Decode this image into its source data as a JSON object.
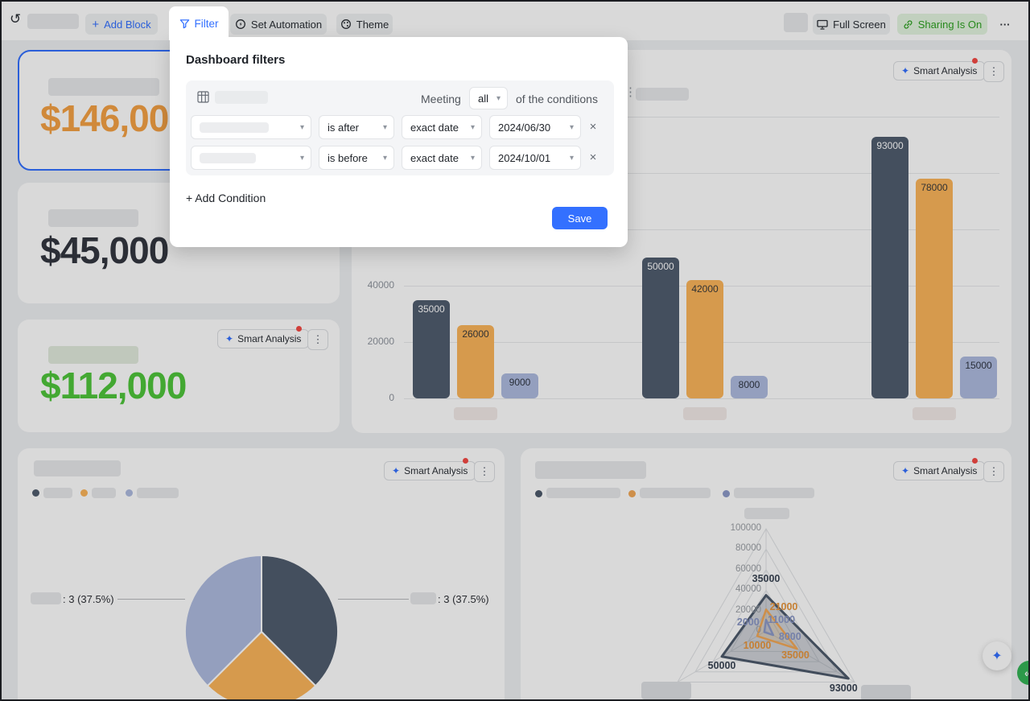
{
  "toolbar": {
    "add_block": "Add Block",
    "filter": "Filter",
    "set_automation": "Set Automation",
    "theme": "Theme",
    "full_screen": "Full Screen",
    "sharing": "Sharing Is On",
    "more": "···"
  },
  "filter_modal": {
    "title": "Dashboard filters",
    "meeting_label": "Meeting",
    "match_value": "all",
    "conditions_suffix": "of the conditions",
    "rows": [
      {
        "operator": "is after",
        "mode": "exact date",
        "value": "2024/06/30"
      },
      {
        "operator": "is before",
        "mode": "exact date",
        "value": "2024/10/01"
      }
    ],
    "add_condition": "+ Add Condition",
    "save": "Save"
  },
  "stat_cards": [
    {
      "value": "$146,000",
      "color": "#F5A245",
      "selected": true
    },
    {
      "value": "$45,000",
      "color": "#333740",
      "selected": false
    },
    {
      "value": "$112,000",
      "color": "#4FC63B",
      "selected": false
    }
  ],
  "smart_analysis_label": "Smart Analysis",
  "floating": {
    "collapse": "«",
    "spark": "✦"
  },
  "colors": {
    "accent_blue": "#3370FF",
    "sharing_green": "#2EA121",
    "red_dot": "#F54A45"
  },
  "chart_data": [
    {
      "type": "bar",
      "title": "",
      "categories": [
        "",
        "",
        ""
      ],
      "series": [
        {
          "name": "",
          "color": "#515D6F",
          "values": [
            35000,
            50000,
            93000
          ]
        },
        {
          "name": "",
          "color": "#FCB55B",
          "values": [
            26000,
            42000,
            78000
          ]
        },
        {
          "name": "",
          "color": "#AEBBE0",
          "values": [
            9000,
            8000,
            15000
          ]
        }
      ],
      "yticks": [
        0,
        20000,
        40000,
        60000,
        80000,
        100000
      ],
      "ylim": [
        0,
        100000
      ],
      "grid": true,
      "bar_value_labels": true,
      "category_labels_redacted": true
    },
    {
      "type": "pie",
      "slices": [
        {
          "pct": 37.5,
          "color": "#515D6F",
          "callout": ": 3 (37.5%)",
          "callout_side": "right"
        },
        {
          "pct": 25,
          "color": "#FCB55B",
          "callout": null,
          "callout_side": null
        },
        {
          "pct": 37.5,
          "color": "#AEBBE0",
          "callout": ": 3 (37.5%)",
          "callout_side": "left"
        }
      ],
      "legend_labels_redacted": true
    },
    {
      "type": "radar",
      "axes": [
        "top",
        "bottom-right",
        "bottom-left"
      ],
      "axis_labels_redacted": true,
      "rticks": [
        0,
        20000,
        40000,
        60000,
        80000,
        100000
      ],
      "rmax": 100000,
      "series": [
        {
          "name": "",
          "color": "#4D5A6B",
          "fill": "rgba(81,93,111,0.28)",
          "label_color": "#3A4554",
          "values": [
            35000,
            93000,
            50000
          ]
        },
        {
          "name": "",
          "color": "#F2A857",
          "fill": "rgba(252,181,91,0.18)",
          "label_color": "#E8963C",
          "values": [
            21000,
            35000,
            10000
          ]
        },
        {
          "name": "",
          "color": "#8E9BC8",
          "fill": "rgba(174,187,224,0.45)",
          "label_color": "#8A97C6",
          "values": [
            11000,
            8000,
            2000
          ]
        }
      ]
    }
  ]
}
